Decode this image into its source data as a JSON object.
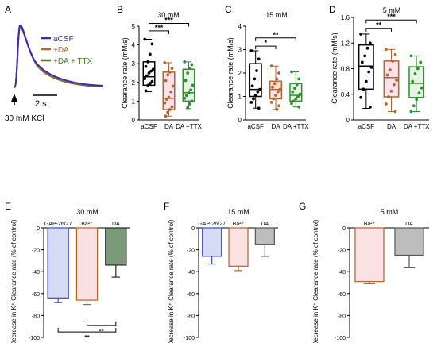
{
  "panels": {
    "A": {
      "letter": "A",
      "scale_label": "2 s",
      "stimulus_label": "30 mM KCl",
      "legend": [
        {
          "label": "aCSF",
          "color": "#3a2bbf"
        },
        {
          "label": "+DA",
          "color": "#b5652a"
        },
        {
          "label": "+DA + TTX",
          "color": "#4b7d1e"
        }
      ]
    },
    "B": {
      "letter": "B",
      "title": "30 mM"
    },
    "C": {
      "letter": "C",
      "title": "15 mM"
    },
    "D": {
      "letter": "D",
      "title": "5 mM"
    },
    "E": {
      "letter": "E",
      "title": "30 mM"
    },
    "F": {
      "letter": "F",
      "title": "15 mM"
    },
    "G": {
      "letter": "G",
      "title": "5 mM"
    }
  },
  "chart_data": [
    {
      "id": "B",
      "type": "box",
      "title": "30 mM",
      "ylabel": "Clearance rate (mM/s)",
      "ylim": [
        0,
        5
      ],
      "yticks": [
        0,
        1,
        2,
        3,
        4,
        5
      ],
      "categories": [
        "aCSF",
        "DA",
        "DA +TTX"
      ],
      "colors": [
        "#000000",
        "#b5652a",
        "#2f8f2f"
      ],
      "fills": [
        "#ffffff",
        "#fbe1ea",
        "#e6f5e3"
      ],
      "boxes": [
        {
          "min": 1.5,
          "q1": 1.85,
          "median": 2.3,
          "q3": 3.1,
          "max": 4.3
        },
        {
          "min": 0.2,
          "q1": 0.55,
          "median": 1.15,
          "q3": 2.55,
          "max": 3.05
        },
        {
          "min": 0.6,
          "q1": 1.0,
          "median": 1.45,
          "q3": 2.7,
          "max": 3.1
        }
      ],
      "points": [
        [
          4.3,
          4.05,
          3.5,
          3.1,
          2.85,
          2.7,
          2.6,
          2.5,
          2.35,
          2.2,
          2.05,
          1.95,
          1.85,
          1.55
        ],
        [
          3.05,
          2.75,
          2.55,
          2.4,
          2.1,
          1.8,
          1.5,
          1.2,
          1.1,
          0.9,
          0.7,
          0.55,
          0.4,
          0.2
        ],
        [
          3.1,
          2.95,
          2.75,
          2.5,
          2.1,
          1.85,
          1.6,
          1.45,
          1.3,
          1.15,
          1.0,
          0.85,
          0.65
        ]
      ],
      "significance": [
        {
          "from": 0,
          "to": 1,
          "label": "***",
          "y": 4.75
        },
        {
          "from": 0,
          "to": 2,
          "label": "***",
          "y": 5.15
        }
      ]
    },
    {
      "id": "C",
      "type": "box",
      "title": "15 mM",
      "ylabel": "Clearance rate (mM/s)",
      "ylim": [
        0,
        4
      ],
      "yticks": [
        0,
        1,
        2,
        3,
        4
      ],
      "categories": [
        "aCSF",
        "DA",
        "DA +TTX"
      ],
      "colors": [
        "#000000",
        "#b5652a",
        "#2f8f2f"
      ],
      "fills": [
        "#ffffff",
        "#fbe1ea",
        "#e6f5e3"
      ],
      "boxes": [
        {
          "min": 0.5,
          "q1": 1.0,
          "median": 1.3,
          "q3": 2.4,
          "max": 2.95
        },
        {
          "min": 0.45,
          "q1": 0.9,
          "median": 1.3,
          "q3": 1.65,
          "max": 2.3
        },
        {
          "min": 0.55,
          "q1": 0.8,
          "median": 1.05,
          "q3": 1.55,
          "max": 2.05
        }
      ],
      "points": [
        [
          2.95,
          2.6,
          2.1,
          1.75,
          1.45,
          1.3,
          1.2,
          1.05,
          0.9,
          0.75,
          0.5
        ],
        [
          2.3,
          2.0,
          1.75,
          1.55,
          1.4,
          1.3,
          1.2,
          1.05,
          0.9,
          0.75,
          0.6,
          0.45
        ],
        [
          2.05,
          1.75,
          1.5,
          1.35,
          1.2,
          1.1,
          1.0,
          0.9,
          0.8,
          0.7,
          0.55
        ]
      ],
      "significance": [
        {
          "from": 0,
          "to": 1,
          "label": "*",
          "y": 3.15
        },
        {
          "from": 0,
          "to": 2,
          "label": "**",
          "y": 3.5
        }
      ]
    },
    {
      "id": "D",
      "type": "box",
      "title": "5 mM",
      "ylabel": "Clearance rate (mM/s)",
      "ylim": [
        0,
        1.6
      ],
      "yticks": [
        0,
        0.4,
        0.8,
        1.2,
        1.6
      ],
      "ytick_labels": [
        "0",
        "0.4",
        "0.8",
        "1.2",
        "1.6"
      ],
      "categories": [
        "aCSF",
        "DA",
        "DA +TTX"
      ],
      "colors": [
        "#000000",
        "#b5652a",
        "#2f8f2f"
      ],
      "fills": [
        "#ffffff",
        "#fbe1ea",
        "#e6f5e3"
      ],
      "boxes": [
        {
          "min": 0.18,
          "q1": 0.48,
          "median": 0.84,
          "q3": 1.17,
          "max": 1.34
        },
        {
          "min": 0.13,
          "q1": 0.36,
          "median": 0.66,
          "q3": 0.92,
          "max": 1.1
        },
        {
          "min": 0.13,
          "q1": 0.35,
          "median": 0.57,
          "q3": 0.83,
          "max": 1.0
        }
      ],
      "points": [
        [
          1.34,
          1.2,
          1.12,
          1.0,
          0.9,
          0.82,
          0.75,
          0.6,
          0.48,
          0.35,
          0.2
        ],
        [
          1.1,
          1.02,
          0.92,
          0.78,
          0.7,
          0.62,
          0.55,
          0.45,
          0.36,
          0.25,
          0.13
        ],
        [
          1.0,
          0.9,
          0.8,
          0.72,
          0.6,
          0.5,
          0.42,
          0.32,
          0.22,
          0.13
        ]
      ],
      "significance": [
        {
          "from": 0,
          "to": 1,
          "label": "**",
          "y": 1.43
        },
        {
          "from": 0,
          "to": 2,
          "label": "***",
          "y": 1.56
        }
      ]
    },
    {
      "id": "E",
      "type": "bar",
      "title": "30 mM",
      "ylabel": "Decrease in K⁺ Clearance rate (% of control)",
      "ylim": [
        -100,
        0
      ],
      "yticks": [
        0,
        -20,
        -40,
        -60,
        -80,
        -100
      ],
      "categories": [
        "GAP-26/27",
        "Ba²⁺",
        "DA"
      ],
      "values": [
        -64,
        -66,
        -34
      ],
      "errors": [
        4,
        4,
        11
      ],
      "colors": [
        "#3a4ec2",
        "#b5652a",
        "#2a2a2a"
      ],
      "fills": [
        "#d5daf5",
        "#fbe1e1",
        "#7a9a7a"
      ],
      "significance": [
        {
          "from": 1,
          "to": 2,
          "label": "**",
          "y": -89
        },
        {
          "from": 0,
          "to": 2,
          "label": "**",
          "y": -95
        }
      ]
    },
    {
      "id": "F",
      "type": "bar",
      "title": "15 mM",
      "ylabel": "Decrease in K⁺ Clearance rate (% of control)",
      "ylim": [
        -100,
        0
      ],
      "yticks": [
        0,
        -20,
        -40,
        -60,
        -80,
        -100
      ],
      "categories": [
        "GAP-26/27",
        "Ba²⁺",
        "DA"
      ],
      "values": [
        -26,
        -35,
        -15
      ],
      "errors": [
        7,
        4,
        11
      ],
      "colors": [
        "#3a4ec2",
        "#b5652a",
        "#555555"
      ],
      "fills": [
        "#d5daf5",
        "#fbe1e1",
        "#bdbdbd"
      ]
    },
    {
      "id": "G",
      "type": "bar",
      "title": "5 mM",
      "ylabel": "Decrease in K⁺ Clearance rate (% of control)",
      "ylim": [
        -100,
        0
      ],
      "yticks": [
        0,
        -20,
        -40,
        -60,
        -80,
        -100
      ],
      "categories": [
        "Ba²⁺",
        "DA"
      ],
      "values": [
        -49,
        -25
      ],
      "errors": [
        2,
        11
      ],
      "colors": [
        "#b5652a",
        "#555555"
      ],
      "fills": [
        "#fbe1e1",
        "#bdbdbd"
      ]
    }
  ]
}
